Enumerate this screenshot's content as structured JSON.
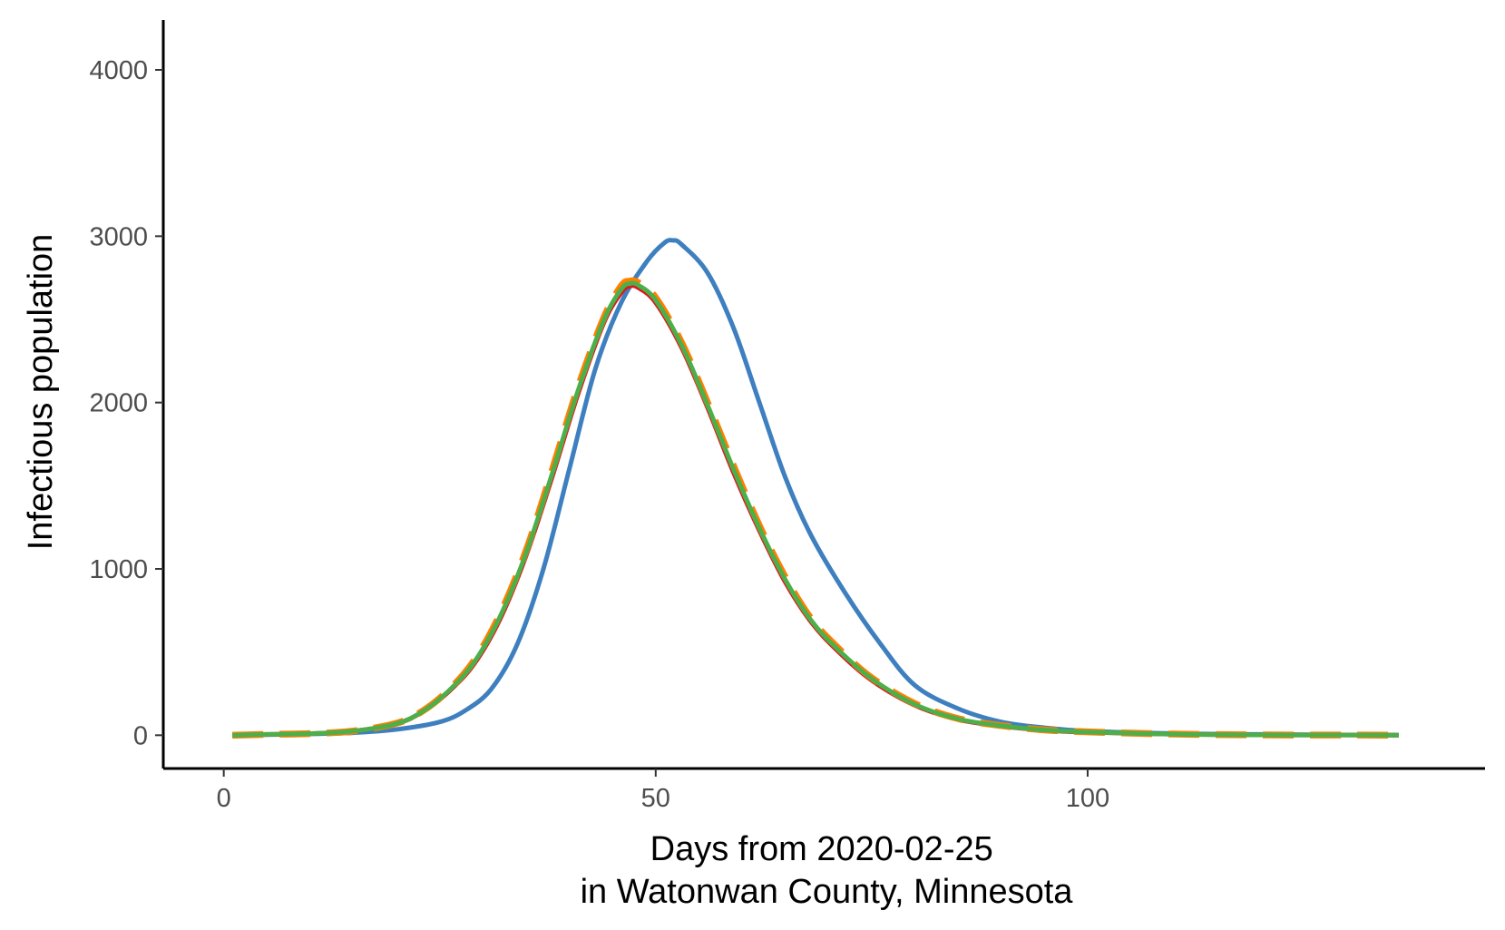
{
  "chart_data": {
    "type": "line",
    "title": "",
    "xlabel_lines": [
      "Days from 2020-02-25",
      "in Watonwan County, Minnesota"
    ],
    "ylabel": "Infectious population",
    "xlim": [
      -7,
      146
    ],
    "ylim": [
      -200,
      4300
    ],
    "x_ticks": [
      0,
      50,
      100
    ],
    "y_ticks": [
      0,
      1000,
      2000,
      3000,
      4000
    ],
    "x_tick_labels": [
      "0",
      "50",
      "100"
    ],
    "y_tick_labels": [
      "0",
      "1000",
      "2000",
      "3000",
      "4000"
    ],
    "grid": false,
    "legend": "none",
    "series": [
      {
        "color": "#3d7fbf",
        "dash": "solid",
        "x": [
          1,
          5,
          10,
          15,
          20,
          25,
          28,
          31,
          34,
          37,
          40,
          43,
          46,
          49,
          51,
          52,
          53,
          56,
          59,
          62,
          65,
          68,
          72,
          76,
          80,
          85,
          90,
          95,
          100,
          110,
          120,
          130,
          136
        ],
        "y": [
          0,
          3,
          8,
          15,
          35,
          80,
          150,
          280,
          550,
          1000,
          1600,
          2200,
          2600,
          2850,
          2960,
          2975,
          2950,
          2780,
          2450,
          2000,
          1550,
          1200,
          850,
          550,
          300,
          160,
          80,
          45,
          25,
          10,
          5,
          2,
          1
        ]
      },
      {
        "color": "#e0141c",
        "dash": "solid",
        "x": [
          1,
          5,
          10,
          15,
          20,
          23,
          26,
          29,
          32,
          35,
          38,
          41,
          44,
          46,
          47,
          48,
          50,
          53,
          56,
          59,
          62,
          65,
          68,
          71,
          75,
          80,
          85,
          90,
          95,
          100,
          110,
          120,
          130,
          136
        ],
        "y": [
          0,
          5,
          10,
          25,
          70,
          140,
          260,
          430,
          700,
          1080,
          1550,
          2050,
          2480,
          2660,
          2700,
          2690,
          2600,
          2330,
          1970,
          1580,
          1230,
          920,
          680,
          510,
          330,
          180,
          95,
          55,
          30,
          18,
          6,
          2,
          1,
          0
        ]
      },
      {
        "color": "#ff7f00",
        "dash": "long-dash",
        "x": [
          1,
          5,
          10,
          15,
          20,
          23,
          26,
          29,
          32,
          35,
          38,
          41,
          44,
          46,
          47,
          48,
          50,
          53,
          56,
          59,
          62,
          65,
          68,
          71,
          75,
          80,
          85,
          90,
          95,
          100,
          110,
          120,
          130,
          136
        ],
        "y": [
          0,
          5,
          10,
          25,
          72,
          145,
          270,
          450,
          730,
          1110,
          1590,
          2090,
          2510,
          2700,
          2730,
          2720,
          2630,
          2360,
          2000,
          1620,
          1260,
          950,
          700,
          530,
          345,
          190,
          100,
          58,
          32,
          20,
          7,
          2,
          1,
          0
        ]
      },
      {
        "color": "#4daf4a",
        "dash": "solid",
        "x": [
          1,
          5,
          10,
          15,
          20,
          23,
          26,
          29,
          32,
          35,
          38,
          41,
          44,
          46,
          47,
          48,
          50,
          53,
          56,
          59,
          62,
          65,
          68,
          71,
          75,
          80,
          85,
          90,
          95,
          100,
          110,
          120,
          130,
          136
        ],
        "y": [
          0,
          5,
          10,
          25,
          70,
          142,
          265,
          440,
          715,
          1095,
          1570,
          2070,
          2495,
          2680,
          2715,
          2705,
          2615,
          2345,
          1985,
          1600,
          1245,
          935,
          690,
          520,
          340,
          185,
          98,
          57,
          31,
          19,
          6,
          2,
          1,
          0
        ]
      }
    ]
  }
}
